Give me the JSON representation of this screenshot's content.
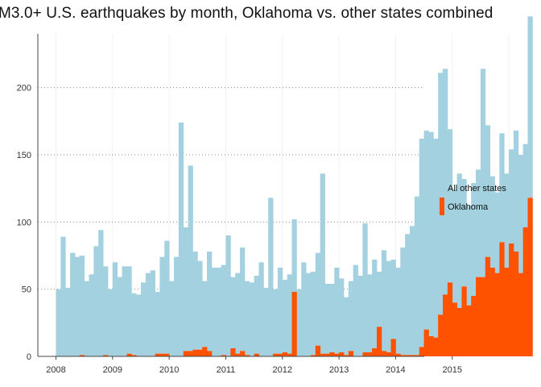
{
  "chart_data": {
    "type": "bar",
    "title": "M3.0+ U.S. earthquakes by month, Oklahoma vs. other states combined",
    "stacked": true,
    "x_start": "2008-01",
    "x_end": "2015-07",
    "ylim": [
      0,
      240
    ],
    "yticks": [
      0,
      50,
      100,
      150,
      200
    ],
    "xticks": [
      "2008",
      "2009",
      "2010",
      "2011",
      "2012",
      "2013",
      "2014",
      "2015"
    ],
    "grid": "horizontal dotted",
    "legend_position": "right",
    "series": [
      {
        "name": "Oklahoma",
        "color": "#FF5200",
        "values": [
          0,
          0,
          0,
          0,
          0,
          1,
          0,
          0,
          0,
          0,
          1,
          0,
          0,
          0,
          0,
          2,
          1,
          0,
          0,
          0,
          0,
          2,
          2,
          2,
          0,
          0,
          0,
          4,
          4,
          5,
          5,
          7,
          4,
          0,
          0,
          1,
          0,
          6,
          2,
          4,
          1,
          0,
          2,
          0,
          0,
          0,
          2,
          2,
          3,
          2,
          48,
          0,
          0,
          0,
          1,
          8,
          2,
          2,
          3,
          2,
          3,
          1,
          4,
          0,
          0,
          3,
          3,
          6,
          22,
          4,
          3,
          13,
          2,
          1,
          1,
          1,
          1,
          7,
          20,
          15,
          14,
          31,
          46,
          55,
          40,
          36,
          52,
          38,
          45,
          59,
          59,
          74,
          66,
          62,
          85,
          66,
          84,
          78,
          62,
          96,
          118
        ]
      },
      {
        "name": "All other states",
        "color": "#A3D1E0",
        "values": [
          50,
          89,
          51,
          77,
          74,
          74,
          56,
          61,
          82,
          94,
          66,
          50,
          70,
          59,
          67,
          65,
          46,
          46,
          55,
          62,
          64,
          46,
          72,
          84,
          56,
          74,
          174,
          92,
          138,
          73,
          66,
          49,
          74,
          66,
          66,
          67,
          90,
          53,
          60,
          77,
          55,
          55,
          58,
          70,
          51,
          118,
          48,
          64,
          54,
          59,
          54,
          50,
          70,
          62,
          62,
          69,
          134,
          52,
          51,
          64,
          55,
          43,
          52,
          68,
          60,
          96,
          58,
          66,
          41,
          75,
          68,
          59,
          64,
          80,
          90,
          96,
          118,
          155,
          148,
          152,
          148,
          180,
          168,
          114,
          84,
          100,
          80,
          74,
          84,
          80,
          155,
          98,
          68,
          60,
          81,
          70,
          70,
          90,
          88,
          62,
          135
        ]
      }
    ]
  }
}
